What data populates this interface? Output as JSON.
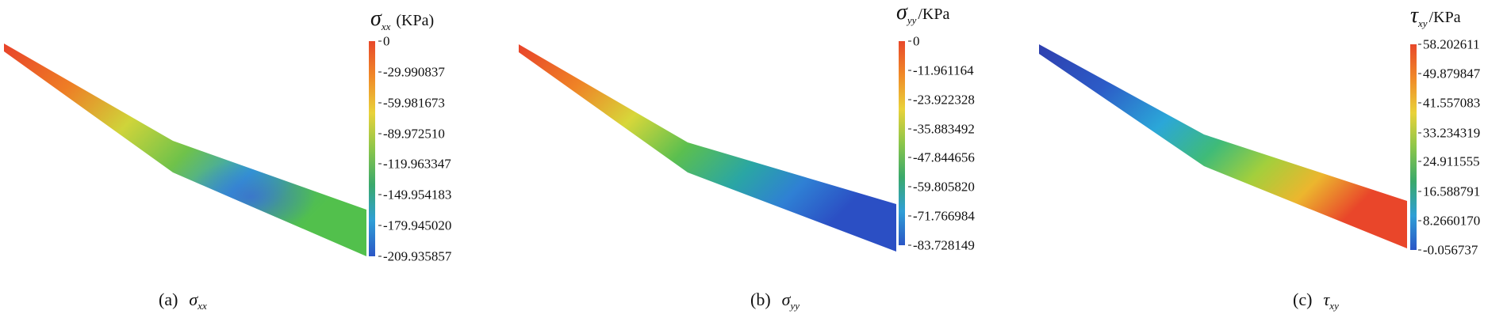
{
  "panels": [
    {
      "id": "a",
      "caption_label": "(a)",
      "caption_symbol": "σ",
      "caption_sub": "xx",
      "unit_symbol": "σ",
      "unit_sub": "xx",
      "unit_text": " (KPa)",
      "ticks": [
        "0",
        "-29.990837",
        "-59.981673",
        "-89.972510",
        "-119.963347",
        "-149.954183",
        "-179.945020",
        "-209.935857"
      ],
      "colorbar_top": "#e8482a",
      "colorbar_bottom": "#2b56c6"
    },
    {
      "id": "b",
      "caption_label": "(b)",
      "caption_symbol": "σ",
      "caption_sub": "yy",
      "unit_symbol": "σ",
      "unit_sub": "yy",
      "unit_text": "/KPa",
      "ticks": [
        "0",
        "-11.961164",
        "-23.922328",
        "-35.883492",
        "-47.844656",
        "-59.805820",
        "-71.766984",
        "-83.728149"
      ],
      "colorbar_top": "#e8482a",
      "colorbar_bottom": "#2b56c6"
    },
    {
      "id": "c",
      "caption_label": "(c)",
      "caption_symbol": "τ",
      "caption_sub": "xy",
      "unit_symbol": "τ",
      "unit_sub": "xy",
      "unit_text": "/KPa",
      "ticks": [
        "58.202611",
        "49.879847",
        "41.557083",
        "33.234319",
        "24.911555",
        "16.588791",
        "8.2660170",
        "-0.056737"
      ],
      "colorbar_top": "#e8482a",
      "colorbar_bottom": "#2b56c6"
    }
  ]
}
